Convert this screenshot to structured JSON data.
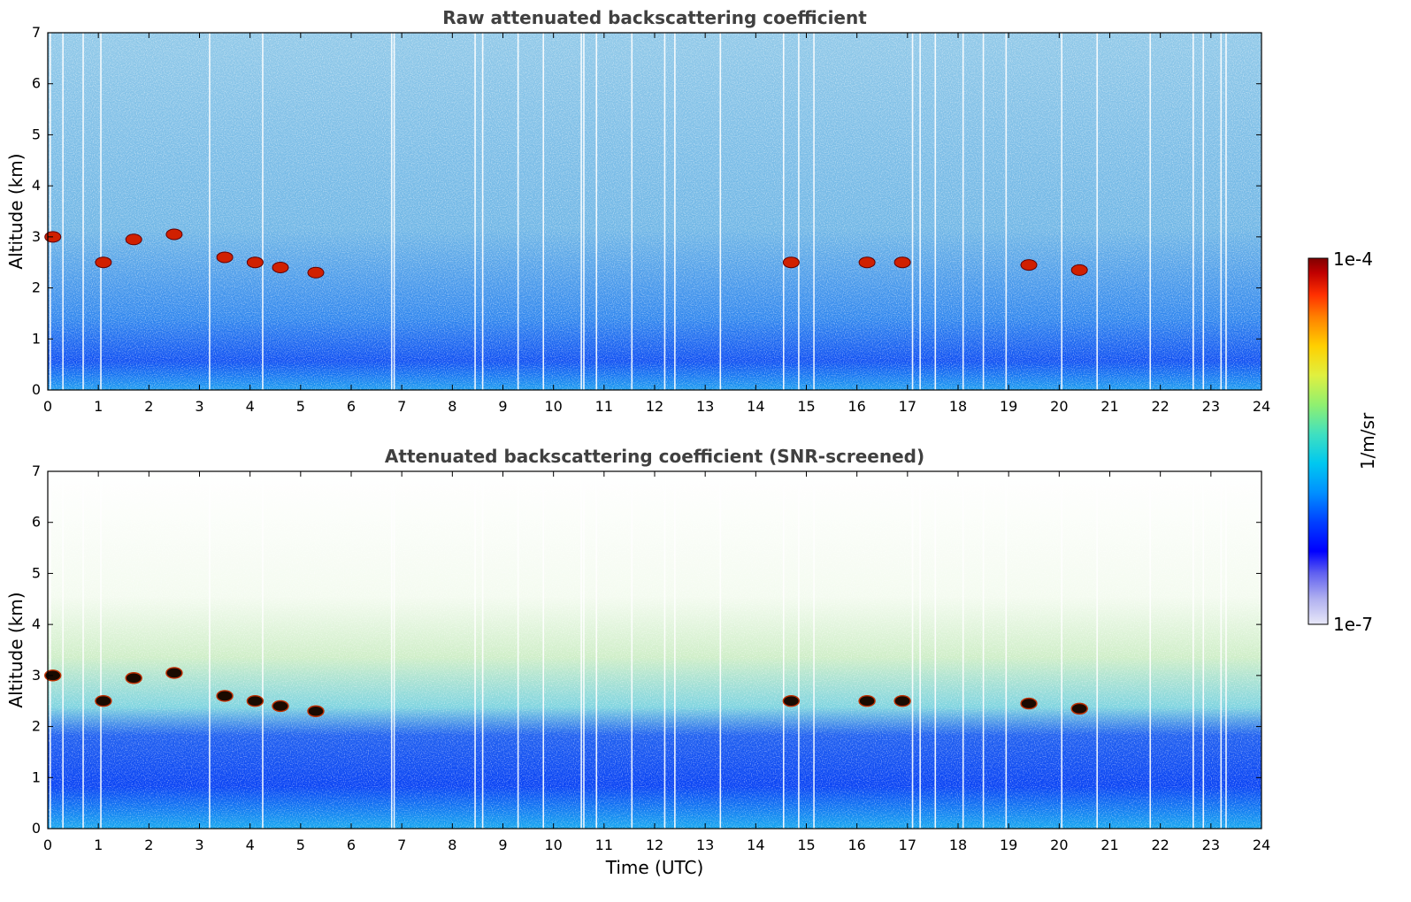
{
  "chart_data": [
    {
      "type": "heatmap",
      "title": "Raw attenuated backscattering coefficient",
      "xlabel": "",
      "ylabel": "Altitude (km)",
      "xlim": [
        0,
        24
      ],
      "ylim": [
        0,
        7
      ],
      "xticks": [
        "0",
        "1",
        "2",
        "3",
        "4",
        "5",
        "6",
        "7",
        "8",
        "9",
        "10",
        "11",
        "12",
        "13",
        "14",
        "15",
        "16",
        "17",
        "18",
        "19",
        "20",
        "21",
        "22",
        "23",
        "24"
      ],
      "yticks": [
        "0",
        "1",
        "2",
        "3",
        "4",
        "5",
        "6",
        "7"
      ],
      "features": [
        {
          "name": "cloud",
          "time_utc": 0.1,
          "altitude_km": 3.0
        },
        {
          "name": "cloud",
          "time_utc": 1.1,
          "altitude_km": 2.5
        },
        {
          "name": "cloud",
          "time_utc": 1.7,
          "altitude_km": 2.95
        },
        {
          "name": "cloud",
          "time_utc": 2.5,
          "altitude_km": 3.05
        },
        {
          "name": "cloud",
          "time_utc": 3.5,
          "altitude_km": 2.6
        },
        {
          "name": "cloud",
          "time_utc": 4.1,
          "altitude_km": 2.5
        },
        {
          "name": "cloud",
          "time_utc": 4.6,
          "altitude_km": 2.4
        },
        {
          "name": "cloud",
          "time_utc": 5.3,
          "altitude_km": 2.3
        },
        {
          "name": "cloud",
          "time_utc": 14.7,
          "altitude_km": 2.5
        },
        {
          "name": "cloud",
          "time_utc": 16.2,
          "altitude_km": 2.5
        },
        {
          "name": "cloud",
          "time_utc": 16.9,
          "altitude_km": 2.5
        },
        {
          "name": "cloud",
          "time_utc": 19.4,
          "altitude_km": 2.45
        },
        {
          "name": "cloud",
          "time_utc": 20.4,
          "altitude_km": 2.35
        }
      ]
    },
    {
      "type": "heatmap",
      "title": "Attenuated backscattering coefficient (SNR-screened)",
      "xlabel": "Time (UTC)",
      "ylabel": "Altitude (km)",
      "xlim": [
        0,
        24
      ],
      "ylim": [
        0,
        7
      ],
      "xticks": [
        "0",
        "1",
        "2",
        "3",
        "4",
        "5",
        "6",
        "7",
        "8",
        "9",
        "10",
        "11",
        "12",
        "13",
        "14",
        "15",
        "16",
        "17",
        "18",
        "19",
        "20",
        "21",
        "22",
        "23",
        "24"
      ],
      "yticks": [
        "0",
        "1",
        "2",
        "3",
        "4",
        "5",
        "6",
        "7"
      ]
    }
  ],
  "colorbar": {
    "label": "1/m/sr",
    "max_label": "1e-4",
    "min_label": "1e-7",
    "colors": [
      "#e8e8f8",
      "#b0b0f0",
      "#6060f0",
      "#0000ff",
      "#0040ff",
      "#0090ff",
      "#00c8f0",
      "#40e0c0",
      "#90f070",
      "#e0f040",
      "#ffd000",
      "#ff8000",
      "#ff3000",
      "#c00000",
      "#800000"
    ]
  }
}
